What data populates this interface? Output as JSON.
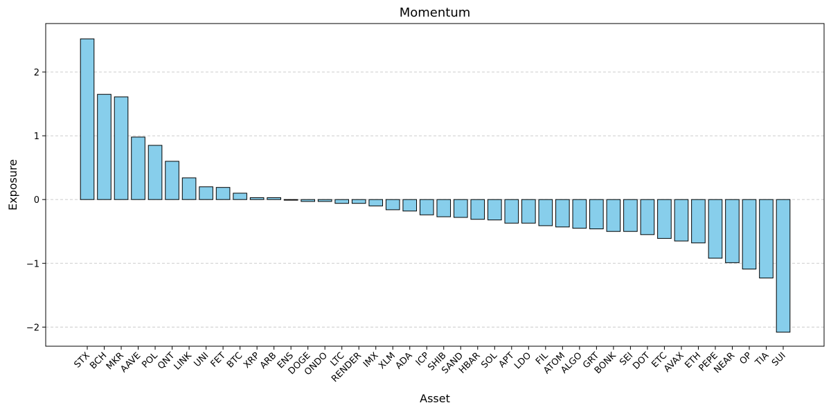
{
  "chart_data": {
    "type": "bar",
    "title": "Momentum",
    "xlabel": "Asset",
    "ylabel": "Exposure",
    "categories": [
      "STX",
      "BCH",
      "MKR",
      "AAVE",
      "POL",
      "QNT",
      "LINK",
      "UNI",
      "FET",
      "BTC",
      "XRP",
      "ARB",
      "ENS",
      "DOGE",
      "ONDO",
      "LTC",
      "RENDER",
      "IMX",
      "XLM",
      "ADA",
      "ICP",
      "SHIB",
      "SAND",
      "HBAR",
      "SOL",
      "APT",
      "LDO",
      "FIL",
      "ATOM",
      "ALGO",
      "GRT",
      "BONK",
      "SEI",
      "DOT",
      "ETC",
      "AVAX",
      "ETH",
      "PEPE",
      "NEAR",
      "OP",
      "TIA",
      "SUI"
    ],
    "values": [
      2.52,
      1.65,
      1.61,
      0.98,
      0.85,
      0.6,
      0.34,
      0.2,
      0.19,
      0.1,
      0.03,
      0.03,
      -0.01,
      -0.03,
      -0.03,
      -0.06,
      -0.06,
      -0.1,
      -0.16,
      -0.18,
      -0.24,
      -0.27,
      -0.28,
      -0.31,
      -0.32,
      -0.37,
      -0.37,
      -0.41,
      -0.43,
      -0.45,
      -0.46,
      -0.5,
      -0.5,
      -0.55,
      -0.61,
      -0.65,
      -0.68,
      -0.92,
      -0.99,
      -1.09,
      -1.23,
      -2.08
    ],
    "yticks": [
      -2,
      -1,
      0,
      1,
      2
    ],
    "ylim": [
      -2.3,
      2.76
    ],
    "grid": "y-dashed",
    "colors": {
      "bar_fill": "#87CEEB",
      "bar_edge": "#000000",
      "grid": "#cccccc"
    }
  }
}
